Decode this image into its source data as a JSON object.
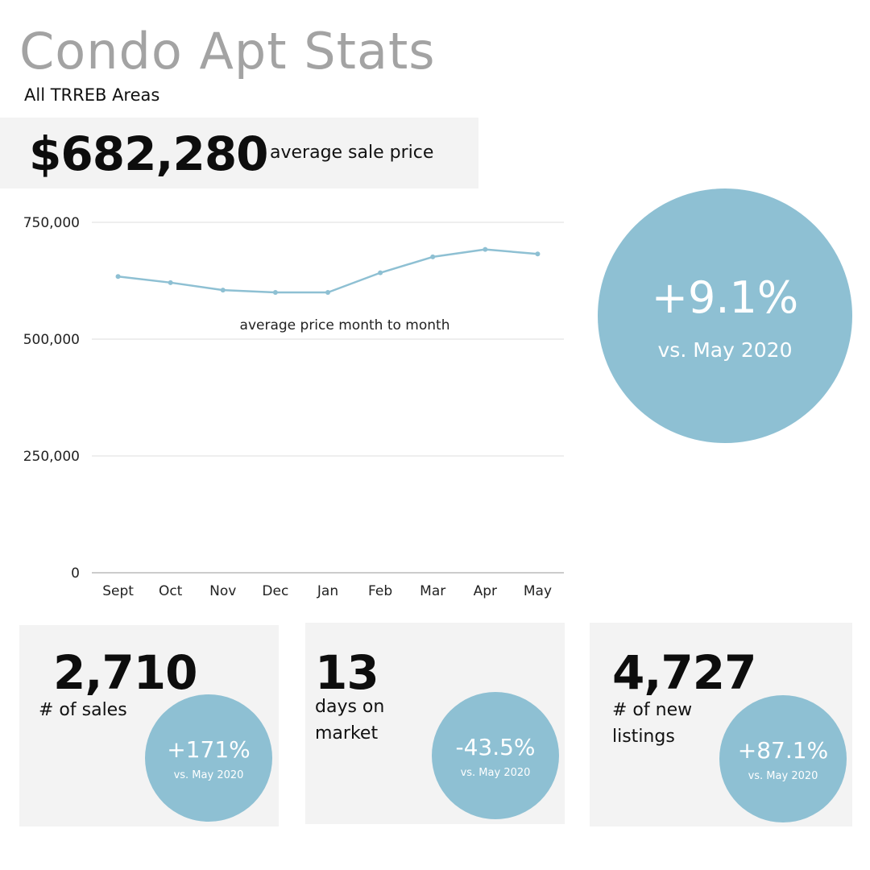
{
  "header": {
    "title": "Condo Apt Stats",
    "subtitle": "All TRREB Areas"
  },
  "headline": {
    "value": "$682,280",
    "label": "average sale price"
  },
  "yoy": {
    "pct": "+9.1%",
    "label": "vs. May 2020"
  },
  "chart_data": {
    "type": "line",
    "title": "average price month to month",
    "categories": [
      "Sept",
      "Oct",
      "Nov",
      "Dec",
      "Jan",
      "Feb",
      "Mar",
      "Apr",
      "May"
    ],
    "values": [
      634000,
      621000,
      605000,
      600000,
      600000,
      642000,
      676000,
      692000,
      682280
    ],
    "yticks": [
      "0",
      "250,000",
      "500,000",
      "750,000"
    ],
    "ylim": [
      0,
      750000
    ],
    "grid": true,
    "color": "#8ec0d3"
  },
  "cards": [
    {
      "value": "2,710",
      "label": "# of sales",
      "pct": "+171%",
      "sub": "vs. May 2020"
    },
    {
      "value": "13",
      "label": "days on market",
      "pct": "-43.5%",
      "sub": "vs. May 2020"
    },
    {
      "value": "4,727",
      "label": "# of new listings",
      "pct": "+87.1%",
      "sub": "vs. May 2020"
    }
  ]
}
